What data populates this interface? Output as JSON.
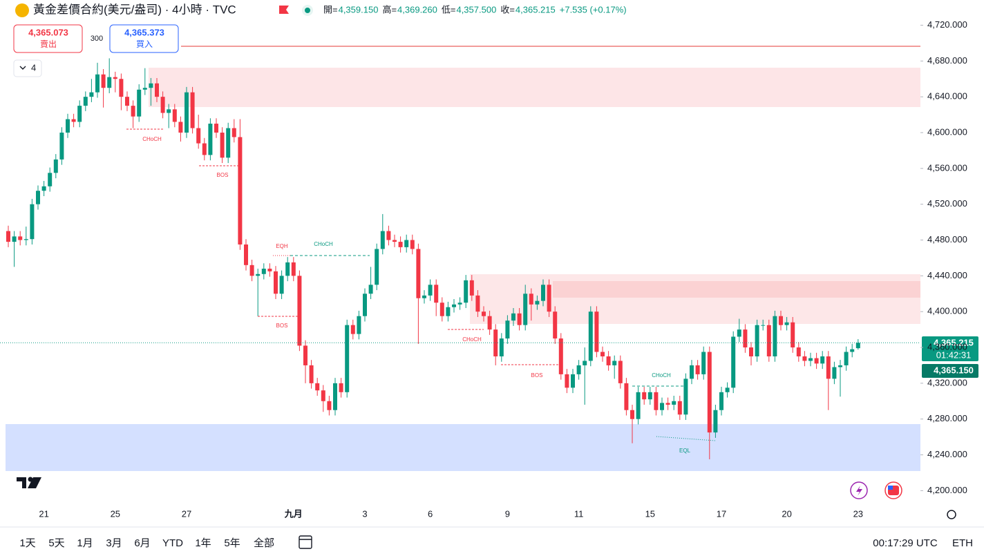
{
  "header": {
    "title": "黃金差價合約(美元/盎司) · 4小時 · TVC",
    "ohlc": [
      {
        "label": "開=",
        "value": "4,359.150"
      },
      {
        "label": "高=",
        "value": "4,369.260"
      },
      {
        "label": "低=",
        "value": "4,357.500"
      },
      {
        "label": "收=",
        "value": "4,365.215"
      }
    ],
    "change": "+7.535 (+0.17%)"
  },
  "trade": {
    "sell_price": "4,365.073",
    "sell": "賣出",
    "spread": "300",
    "buy_price": "4,365.373",
    "buy": "買入",
    "indicators": "4"
  },
  "chart_data": {
    "type": "candlestick",
    "up_color": "#089981",
    "down_color": "#f23645",
    "categories": [
      null,
      null,
      null,
      null,
      null,
      null,
      "21",
      null,
      null,
      null,
      null,
      null,
      null,
      null,
      null,
      null,
      null,
      null,
      "25",
      null,
      null,
      null,
      null,
      null,
      null,
      null,
      null,
      null,
      null,
      null,
      "27",
      null,
      null,
      null,
      null,
      null,
      null,
      null,
      null,
      null,
      null,
      null,
      null,
      null,
      null,
      null,
      null,
      null,
      "九月",
      null,
      null,
      null,
      null,
      null,
      null,
      null,
      null,
      null,
      null,
      null,
      "3",
      null,
      null,
      null,
      null,
      null,
      null,
      null,
      null,
      null,
      null,
      "6",
      null,
      null,
      null,
      null,
      null,
      null,
      null,
      null,
      null,
      null,
      null,
      null,
      "9",
      null,
      null,
      null,
      null,
      null,
      null,
      null,
      null,
      null,
      null,
      null,
      "11",
      null,
      null,
      null,
      null,
      null,
      null,
      null,
      null,
      null,
      null,
      null,
      "15",
      null,
      null,
      null,
      null,
      null,
      null,
      null,
      null,
      null,
      null,
      null,
      "17",
      null,
      null,
      null,
      null,
      null,
      null,
      null,
      null,
      null,
      null,
      "20",
      null,
      null,
      null,
      null,
      null,
      null,
      null,
      null,
      null,
      null,
      null,
      "23"
    ],
    "open": [
      4490,
      4478,
      4484,
      4480,
      4481,
      4520,
      4535,
      4540,
      4555,
      4570,
      4600,
      4615,
      4612,
      4630,
      4640,
      4645,
      4665,
      4650,
      4662,
      4660,
      4640,
      4630,
      4618,
      4648,
      4650,
      4655,
      4640,
      4622,
      4626,
      4612,
      4600,
      4645,
      4605,
      4588,
      4575,
      4610,
      4600,
      4572,
      4605,
      4595,
      4475,
      4452,
      4440,
      4442,
      4448,
      4445,
      4420,
      4440,
      4455,
      4440,
      4362,
      4340,
      4320,
      4312,
      4300,
      4290,
      4320,
      4310,
      4385,
      4375,
      4395,
      4420,
      4430,
      4470,
      4490,
      4480,
      4478,
      4472,
      4480,
      4470,
      4415,
      4418,
      4430,
      4410,
      4395,
      4405,
      4408,
      4410,
      4435,
      4418,
      4400,
      4395,
      4380,
      4350,
      4370,
      4390,
      4398,
      4385,
      4420,
      4408,
      4412,
      4430,
      4400,
      4370,
      4330,
      4315,
      4330,
      4340,
      4345,
      4400,
      4355,
      4350,
      4340,
      4345,
      4320,
      4290,
      4280,
      4310,
      4302,
      4310,
      4290,
      4298,
      4296,
      4300,
      4285,
      4325,
      4340,
      4330,
      4355,
      4265,
      4290,
      4310,
      4315,
      4372,
      4380,
      4360,
      4350,
      4385,
      4385,
      4350,
      4395,
      4385,
      4388,
      4360,
      4350,
      4345,
      4348,
      4342,
      4350,
      4325,
      4338,
      4340,
      4355,
      4359.15
    ],
    "high": [
      4496,
      4490,
      4490,
      4495,
      4526,
      4541,
      4546,
      4561,
      4576,
      4606,
      4621,
      4621,
      4636,
      4646,
      4660,
      4678,
      4671,
      4683,
      4668,
      4666,
      4646,
      4636,
      4654,
      4672,
      4661,
      4661,
      4646,
      4632,
      4632,
      4618,
      4651,
      4651,
      4620,
      4594,
      4616,
      4616,
      4606,
      4611,
      4615,
      4615,
      4481,
      4458,
      4448,
      4454,
      4454,
      4451,
      4446,
      4461,
      4461,
      4446,
      4368,
      4346,
      4326,
      4318,
      4306,
      4326,
      4326,
      4391,
      4391,
      4401,
      4426,
      4450,
      4476,
      4509,
      4496,
      4486,
      4484,
      4486,
      4486,
      4476,
      4424,
      4436,
      4436,
      4416,
      4411,
      4414,
      4416,
      4441,
      4441,
      4424,
      4406,
      4401,
      4386,
      4376,
      4396,
      4404,
      4404,
      4430,
      4426,
      4418,
      4436,
      4436,
      4406,
      4376,
      4336,
      4336,
      4346,
      4360,
      4406,
      4406,
      4361,
      4356,
      4351,
      4351,
      4326,
      4296,
      4316,
      4316,
      4316,
      4316,
      4304,
      4304,
      4306,
      4306,
      4331,
      4346,
      4346,
      4361,
      4361,
      4296,
      4316,
      4321,
      4378,
      4392,
      4386,
      4366,
      4391,
      4391,
      4391,
      4401,
      4401,
      4394,
      4394,
      4366,
      4356,
      4354,
      4354,
      4356,
      4356,
      4344,
      4346,
      4361,
      4364,
      4369.26
    ],
    "low": [
      4472,
      4450,
      4474,
      4474,
      4475,
      4514,
      4529,
      4534,
      4549,
      4564,
      4594,
      4606,
      4606,
      4624,
      4634,
      4639,
      4628,
      4644,
      4645,
      4625,
      4624,
      4605,
      4612,
      4642,
      4630,
      4634,
      4616,
      4605,
      4606,
      4590,
      4594,
      4599,
      4582,
      4569,
      4569,
      4594,
      4566,
      4566,
      4589,
      4469,
      4446,
      4434,
      4395,
      4436,
      4439,
      4414,
      4414,
      4434,
      4434,
      4356,
      4320,
      4314,
      4306,
      4288,
      4284,
      4284,
      4304,
      4304,
      4369,
      4369,
      4389,
      4414,
      4424,
      4464,
      4474,
      4472,
      4466,
      4466,
      4464,
      4364,
      4409,
      4412,
      4395,
      4389,
      4389,
      4399,
      4402,
      4404,
      4412,
      4394,
      4389,
      4374,
      4340,
      4344,
      4364,
      4384,
      4379,
      4379,
      4390,
      4402,
      4406,
      4394,
      4364,
      4324,
      4309,
      4309,
      4324,
      4296,
      4339,
      4349,
      4344,
      4334,
      4325,
      4314,
      4284,
      4253,
      4274,
      4296,
      4296,
      4284,
      4284,
      4290,
      4290,
      4279,
      4279,
      4319,
      4324,
      4324,
      4235,
      4259,
      4284,
      4304,
      4309,
      4366,
      4354,
      4340,
      4344,
      4379,
      4344,
      4344,
      4379,
      4379,
      4354,
      4344,
      4339,
      4339,
      4336,
      4336,
      4290,
      4319,
      4305,
      4334,
      4349,
      4357.5
    ],
    "close": [
      4478,
      4484,
      4480,
      4481,
      4520,
      4535,
      4540,
      4555,
      4570,
      4600,
      4615,
      4612,
      4630,
      4640,
      4645,
      4665,
      4650,
      4662,
      4660,
      4640,
      4630,
      4618,
      4648,
      4650,
      4655,
      4640,
      4622,
      4626,
      4612,
      4600,
      4645,
      4605,
      4588,
      4575,
      4610,
      4600,
      4572,
      4605,
      4595,
      4475,
      4452,
      4440,
      4442,
      4448,
      4445,
      4420,
      4440,
      4455,
      4440,
      4362,
      4340,
      4320,
      4312,
      4300,
      4290,
      4320,
      4310,
      4385,
      4375,
      4395,
      4420,
      4430,
      4470,
      4490,
      4480,
      4478,
      4472,
      4480,
      4470,
      4415,
      4418,
      4430,
      4410,
      4395,
      4405,
      4408,
      4410,
      4435,
      4418,
      4400,
      4395,
      4380,
      4350,
      4370,
      4390,
      4398,
      4385,
      4420,
      4408,
      4412,
      4430,
      4400,
      4370,
      4330,
      4315,
      4330,
      4340,
      4345,
      4400,
      4355,
      4350,
      4340,
      4345,
      4320,
      4290,
      4280,
      4310,
      4302,
      4310,
      4290,
      4298,
      4296,
      4300,
      4285,
      4325,
      4340,
      4330,
      4355,
      4265,
      4290,
      4310,
      4315,
      4372,
      4380,
      4360,
      4350,
      4385,
      4385,
      4350,
      4395,
      4385,
      4388,
      4360,
      4350,
      4345,
      4348,
      4342,
      4350,
      4325,
      4338,
      4340,
      4355,
      4358,
      4365.215
    ],
    "ylim": [
      4181,
      4725
    ],
    "yticks": [
      {
        "value": 4200,
        "label": "4,200.000"
      },
      {
        "value": 4240,
        "label": "4,240.000"
      },
      {
        "value": 4280,
        "label": "4,280.000"
      },
      {
        "value": 4320,
        "label": "4,320.000"
      },
      {
        "value": 4360,
        "label": "4,360.000"
      },
      {
        "value": 4400,
        "label": "4,400.000"
      },
      {
        "value": 4440,
        "label": "4,440.000"
      },
      {
        "value": 4480,
        "label": "4,480.000"
      },
      {
        "value": 4520,
        "label": "4,520.000"
      },
      {
        "value": 4560,
        "label": "4,560.000"
      },
      {
        "value": 4600,
        "label": "4,600.000"
      },
      {
        "value": 4640,
        "label": "4,640.000"
      },
      {
        "value": 4680,
        "label": "4,680.000"
      },
      {
        "value": 4720,
        "label": "4,720.000"
      }
    ],
    "grid": false,
    "annotations": [
      "CHoCH",
      "BOS",
      "EQH",
      "CHoCH",
      "BOS",
      "CHoCH",
      "BOS",
      "CHoCH",
      "EQL"
    ],
    "price_label": {
      "price": "4,365.215",
      "countdown": "01:42:31",
      "bid": "4,365.150"
    }
  },
  "toolbar": {
    "ranges": [
      "1天",
      "5天",
      "1月",
      "3月",
      "6月",
      "YTD",
      "1年",
      "5年",
      "全部"
    ],
    "time": "00:17:29 UTC",
    "session": "ETH"
  }
}
